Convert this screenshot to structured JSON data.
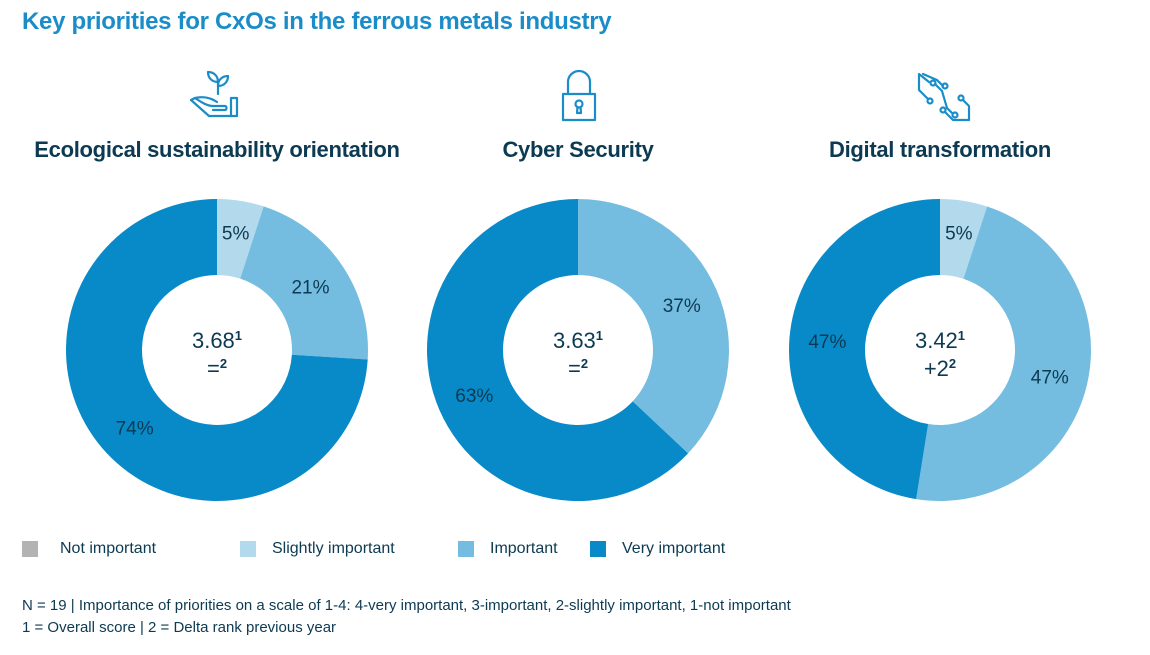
{
  "title": "Key priorities for CxOs in the ferrous metals industry",
  "colors": {
    "not_important": "#b3b3b3",
    "slightly_important": "#b3d9ec",
    "important": "#74bde0",
    "very_important": "#088ac8"
  },
  "legend": [
    {
      "label": "Not important",
      "key": "not_important"
    },
    {
      "label": "Slightly important",
      "key": "slightly_important"
    },
    {
      "label": "Important",
      "key": "important"
    },
    {
      "label": "Very important",
      "key": "very_important"
    }
  ],
  "notes": {
    "line1": "N = 19 | Importance of priorities on a scale of 1-4: 4-very important, 3-important, 2-slightly important, 1-not important",
    "line2": "1 = Overall score | 2 = Delta rank previous year"
  },
  "chart_data": [
    {
      "type": "pie",
      "title": "Ecological sustainability orientation",
      "icon": "hand-plant-icon",
      "center_score": "3.68",
      "center_delta": "=",
      "categories": [
        "Not important",
        "Slightly important",
        "Important",
        "Very important"
      ],
      "values": [
        0,
        5,
        21,
        74
      ],
      "labels": [
        "",
        "5%",
        "21%",
        "74%"
      ]
    },
    {
      "type": "pie",
      "title": "Cyber Security",
      "icon": "padlock-icon",
      "center_score": "3.63",
      "center_delta": "=",
      "categories": [
        "Not important",
        "Slightly important",
        "Important",
        "Very important"
      ],
      "values": [
        0,
        0,
        37,
        63
      ],
      "labels": [
        "",
        "",
        "37%",
        "63%"
      ]
    },
    {
      "type": "pie",
      "title": "Digital transformation",
      "icon": "circuit-icon",
      "center_score": "3.42",
      "center_delta": "+2",
      "categories": [
        "Not important",
        "Slightly important",
        "Important",
        "Very important"
      ],
      "values": [
        0,
        5,
        47,
        47
      ],
      "labels": [
        "",
        "5%",
        "47%",
        "47%"
      ]
    }
  ]
}
